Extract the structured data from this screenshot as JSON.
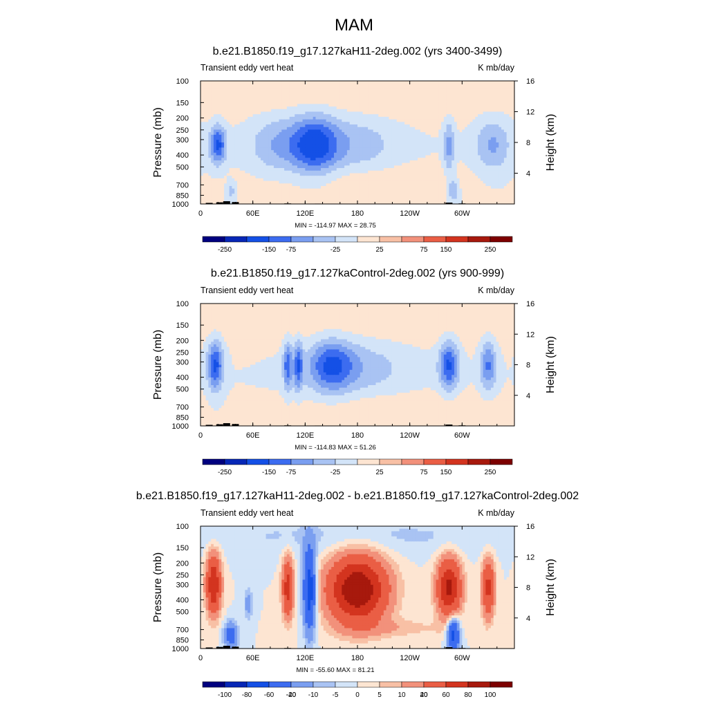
{
  "figure": {
    "title": "MAM",
    "panel_subtitle_left": "Transient eddy vert heat",
    "panel_subtitle_right": "K mb/day",
    "ylabel_left": "Pressure (mb)",
    "ylabel_right": "Height (km)"
  },
  "colors": {
    "colorbar_12": [
      "#00007f",
      "#0727b6",
      "#1450e6",
      "#3c6cf0",
      "#7a9ef0",
      "#a9c3f3",
      "#d3e4f8",
      "#fde5d2",
      "#f8c0a5",
      "#f2917b",
      "#ea5e45",
      "#d3341f",
      "#a7190d",
      "#7d0000"
    ]
  },
  "chart_data": [
    {
      "type": "contour",
      "title": "b.e21.B1850.f19_g17.127kaH11-2deg.002 (yrs 3400-3499)",
      "min_max_text": "MIN = -114.97  MAX =  28.75",
      "x_ticks": [
        "0",
        "60E",
        "120E",
        "180",
        "120W",
        "60W"
      ],
      "x_range_deg": [
        0,
        360
      ],
      "y_ticks": [
        "100",
        "150",
        "200",
        "250",
        "300",
        "400",
        "500",
        "700",
        "850",
        "1000"
      ],
      "y_range_mb": [
        100,
        1000
      ],
      "y2_ticks": [
        "4",
        "8",
        "12",
        "16"
      ],
      "colorbar_labels": [
        "-250",
        "-150",
        "-75",
        "-25",
        "25",
        "75",
        "150",
        "250"
      ],
      "colorbar_levels": [
        -300,
        -250,
        -200,
        -150,
        -100,
        -75,
        -50,
        -25,
        0,
        25,
        50,
        75,
        100,
        150,
        200,
        250,
        300
      ]
    },
    {
      "type": "contour",
      "title": "b.e21.B1850.f19_g17.127kaControl-2deg.002 (yrs 900-999)",
      "min_max_text": "MIN = -114.83  MAX =  51.26",
      "x_ticks": [
        "0",
        "60E",
        "120E",
        "180",
        "120W",
        "60W"
      ],
      "x_range_deg": [
        0,
        360
      ],
      "y_ticks": [
        "100",
        "150",
        "200",
        "250",
        "300",
        "400",
        "500",
        "700",
        "850",
        "1000"
      ],
      "y_range_mb": [
        100,
        1000
      ],
      "y2_ticks": [
        "4",
        "8",
        "12",
        "16"
      ],
      "colorbar_labels": [
        "-250",
        "-150",
        "-75",
        "-25",
        "25",
        "75",
        "150",
        "250"
      ],
      "colorbar_levels": [
        -300,
        -250,
        -200,
        -150,
        -100,
        -75,
        -50,
        -25,
        0,
        25,
        50,
        75,
        100,
        150,
        200,
        250,
        300
      ]
    },
    {
      "type": "contour",
      "title": "b.e21.B1850.f19_g17.127kaH11-2deg.002 - b.e21.B1850.f19_g17.127kaControl-2deg.002",
      "min_max_text": "MIN = -55.60  MAX =  81.21",
      "x_ticks": [
        "0",
        "60E",
        "120E",
        "180",
        "120W",
        "60W"
      ],
      "x_range_deg": [
        0,
        360
      ],
      "y_ticks": [
        "100",
        "150",
        "200",
        "250",
        "300",
        "400",
        "500",
        "700",
        "850",
        "1000"
      ],
      "y_range_mb": [
        100,
        1000
      ],
      "y2_ticks": [
        "4",
        "8",
        "12",
        "16"
      ],
      "colorbar_labels": [
        "-100",
        "-80",
        "-60",
        "-40",
        "-20",
        "-10",
        "-5",
        "0",
        "5",
        "10",
        "20",
        "40",
        "60",
        "80",
        "100"
      ],
      "colorbar_levels": [
        -120,
        -100,
        -80,
        -60,
        -40,
        -20,
        -10,
        -5,
        0,
        5,
        10,
        20,
        40,
        60,
        80,
        100,
        120
      ]
    }
  ],
  "contour_features": [
    [
      {
        "lon": 20,
        "p": 330,
        "amp": -110,
        "wx": 9,
        "wy": 1.0
      },
      {
        "lon": 35,
        "p": 780,
        "amp": -40,
        "wx": 5,
        "wy": 0.5
      },
      {
        "lon": 130,
        "p": 330,
        "amp": -115,
        "wx": 28,
        "wy": 1.6
      },
      {
        "lon": 85,
        "p": 330,
        "amp": -45,
        "wx": 30,
        "wy": 1.6
      },
      {
        "lon": 180,
        "p": 330,
        "amp": -40,
        "wx": 45,
        "wy": 1.6
      },
      {
        "lon": 285,
        "p": 340,
        "amp": -60,
        "wx": 6,
        "wy": 1.4
      },
      {
        "lon": 290,
        "p": 780,
        "amp": -55,
        "wx": 6,
        "wy": 0.6
      },
      {
        "lon": 335,
        "p": 330,
        "amp": -55,
        "wx": 20,
        "wy": 1.4
      },
      {
        "lon": 180,
        "p": 650,
        "amp": 22,
        "wx": 120,
        "wy": 0.9
      },
      {
        "lon": 180,
        "p": 140,
        "amp": 20,
        "wx": 250,
        "wy": 1.2
      }
    ],
    [
      {
        "lon": 17,
        "p": 320,
        "amp": -110,
        "wx": 9,
        "wy": 1.3
      },
      {
        "lon": 100,
        "p": 320,
        "amp": -90,
        "wx": 5,
        "wy": 1.3
      },
      {
        "lon": 112,
        "p": 320,
        "amp": -90,
        "wx": 5,
        "wy": 1.3
      },
      {
        "lon": 150,
        "p": 320,
        "amp": -85,
        "wx": 25,
        "wy": 1.4
      },
      {
        "lon": 180,
        "p": 330,
        "amp": -40,
        "wx": 60,
        "wy": 1.6
      },
      {
        "lon": 285,
        "p": 320,
        "amp": -105,
        "wx": 11,
        "wy": 1.3
      },
      {
        "lon": 330,
        "p": 320,
        "amp": -80,
        "wx": 9,
        "wy": 1.3
      },
      {
        "lon": 220,
        "p": 700,
        "amp": 22,
        "wx": 120,
        "wy": 0.8
      },
      {
        "lon": 180,
        "p": 150,
        "amp": 20,
        "wx": 250,
        "wy": 1.2
      }
    ],
    [
      {
        "lon": 15,
        "p": 300,
        "amp": 60,
        "wx": 8,
        "wy": 1.5
      },
      {
        "lon": 100,
        "p": 320,
        "amp": 50,
        "wx": 6,
        "wy": 1.5
      },
      {
        "lon": 125,
        "p": 330,
        "amp": -55,
        "wx": 7,
        "wy": 2.2
      },
      {
        "lon": 180,
        "p": 330,
        "amp": 80,
        "wx": 32,
        "wy": 1.7
      },
      {
        "lon": 285,
        "p": 320,
        "amp": 65,
        "wx": 13,
        "wy": 1.5
      },
      {
        "lon": 330,
        "p": 320,
        "amp": 45,
        "wx": 7,
        "wy": 1.5
      },
      {
        "lon": 290,
        "p": 760,
        "amp": -50,
        "wx": 7,
        "wy": 0.9
      },
      {
        "lon": 35,
        "p": 780,
        "amp": -30,
        "wx": 8,
        "wy": 0.7
      },
      {
        "lon": 55,
        "p": 430,
        "amp": -15,
        "wx": 5,
        "wy": 0.8
      },
      {
        "lon": 220,
        "p": 680,
        "amp": 8,
        "wx": 60,
        "wy": 0.5
      },
      {
        "lon": 180,
        "p": 120,
        "amp": -6,
        "wx": 250,
        "wy": 1.0
      }
    ]
  ],
  "topography": [
    {
      "lon": 10,
      "p": 980
    },
    {
      "lon": 22,
      "p": 970
    },
    {
      "lon": 30,
      "p": 950
    },
    {
      "lon": 40,
      "p": 965
    },
    {
      "lon": 100,
      "p": 990
    },
    {
      "lon": 110,
      "p": 995
    },
    {
      "lon": 135,
      "p": 993
    },
    {
      "lon": 285,
      "p": 975
    },
    {
      "lon": 300,
      "p": 990
    }
  ]
}
